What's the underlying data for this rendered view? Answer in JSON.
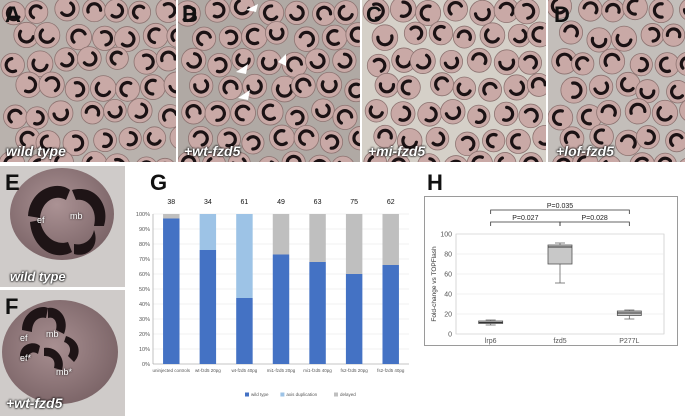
{
  "panels": {
    "A": {
      "label": "A",
      "caption": "wild type"
    },
    "B": {
      "label": "B",
      "caption": "+wt-fzd5"
    },
    "C": {
      "label": "C",
      "caption": "+mi-fzd5"
    },
    "D": {
      "label": "D",
      "caption": "+lof-fzd5"
    },
    "E": {
      "label": "E",
      "caption": "wild type",
      "mark_ef": "ef",
      "mark_mb": "mb"
    },
    "F": {
      "label": "F",
      "caption": "+wt-fzd5",
      "mark_ef": "ef",
      "mark_mb": "mb",
      "mark_ef2": "ef*",
      "mark_mb2": "mb*"
    },
    "G": {
      "label": "G"
    },
    "H": {
      "label": "H"
    }
  },
  "chart_data": [
    {
      "id": "G",
      "type": "bar",
      "stacked": true,
      "categories": [
        "uninjected controls",
        "wt-fzd5 20pg",
        "wt-fzd5 40pg",
        "mi1-fzd5 20pg",
        "mi1-fzd5 40pg",
        "fs2-fzd5 20pg",
        "fs2-fzd5 40pg"
      ],
      "counts": [
        "38",
        "34",
        "61",
        "49",
        "63",
        "75",
        "62"
      ],
      "ylim": [
        0,
        100
      ],
      "yticks": [
        "0%",
        "10%",
        "20%",
        "30%",
        "40%",
        "50%",
        "60%",
        "70%",
        "80%",
        "90%",
        "100%"
      ],
      "series": [
        {
          "name": "wild type",
          "color": "#4472c4",
          "values": [
            97,
            76,
            44,
            73,
            68,
            60,
            66
          ]
        },
        {
          "name": "axis duplication",
          "color": "#9dc3e6",
          "values": [
            0,
            24,
            56,
            0,
            0,
            0,
            0
          ]
        },
        {
          "name": "delayed",
          "color": "#bfbfbf",
          "values": [
            3,
            0,
            0,
            27,
            32,
            40,
            34
          ]
        }
      ],
      "legend_position": "bottom"
    },
    {
      "id": "H",
      "type": "box",
      "categories": [
        "lrp6",
        "fzd5",
        "P277L"
      ],
      "ylabel": "Fold-change vs TOPFlash",
      "ylim": [
        0,
        100
      ],
      "yticks": [
        "0",
        "20",
        "40",
        "60",
        "80",
        "100"
      ],
      "boxes": [
        {
          "min": 9,
          "q1": 10.5,
          "median": 11.5,
          "q3": 13,
          "max": 14
        },
        {
          "min": 51,
          "q1": 70,
          "median": 87,
          "q3": 89,
          "max": 91
        },
        {
          "min": 15,
          "q1": 18.5,
          "median": 21,
          "q3": 23,
          "max": 24
        }
      ],
      "annotations": [
        {
          "text": "P=0.035",
          "pair": [
            0,
            2
          ]
        },
        {
          "text": "P=0.027",
          "pair": [
            0,
            1
          ]
        },
        {
          "text": "P=0.028",
          "pair": [
            1,
            2
          ]
        }
      ]
    }
  ]
}
